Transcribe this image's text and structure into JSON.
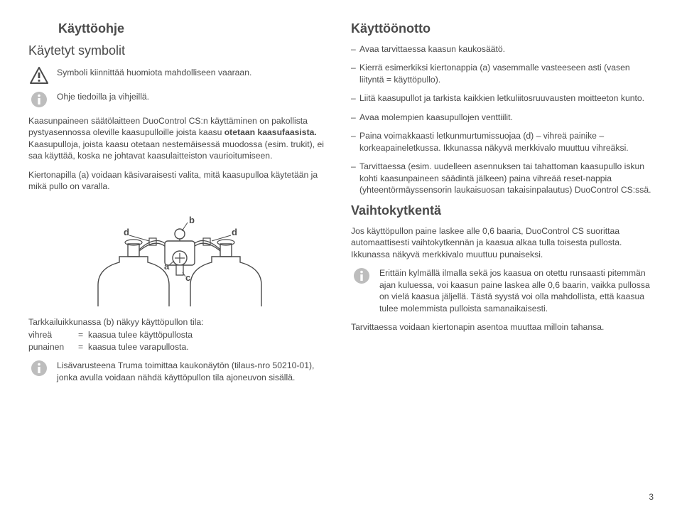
{
  "left": {
    "title_manual": "Käyttöohje",
    "title_symbols": "Käytetyt symbolit",
    "warning_text": "Symboli kiinnittää huomiota mahdolliseen vaaraan.",
    "info_text": "Ohje tiedoilla ja vihjeillä.",
    "para1": "Kaasunpaineen säätölaitteen DuoControl CS:n käyttäminen on pakollista pystyasennossa oleville kaasupulloille joista kaasu otetaan kaasufaasista. Kaasupulloja, joista kaasu otetaan nestemäis­essä muodossa (esim. trukit), ei saa käyttää, koska ne johtavat kaasulaitteiston vaurioitumiseen.",
    "para1_bold": "otetaan kaasufaasista.",
    "para2": "Kiertonapilla (a) voidaan käsivaraisesti valita, mitä kaasupulloa käytetään ja mikä pullo on varalla.",
    "labels": {
      "a": "a",
      "b": "b",
      "c": "c",
      "d": "d"
    },
    "status_caption": "Tarkkailuikkunassa (b) näkyy käyttöpullon tila:",
    "status": [
      {
        "k": "vihreä",
        "v": "kaasua tulee käyttöpullosta"
      },
      {
        "k": "punainen",
        "v": "kaasua tulee varapullosta."
      }
    ],
    "info2": "Lisävarusteena Truma toimittaa kaukonäytön (tilaus-nro 50210-01), jonka avulla voidaan nähdä käyttöpullon tila ajoneuvon sisällä."
  },
  "right": {
    "title_commissioning": "Käyttöönotto",
    "items": [
      "Avaa tarvittaessa kaasun kaukosäätö.",
      "Kierrä esimerkiksi kiertonappia (a) vasemmalle vasteeseen asti (vasen liityntä = käyttöpullo).",
      "Liitä kaasupullot ja tarkista kaikkien letkuliitosruuvausten moitteeton kunto.",
      "Avaa molempien kaasupullojen venttiilit.",
      "Paina voimakkaasti letkunmurtumissuojaa (d) – vihreä painike – korkeapaineletkussa. Ikkunassa näkyvä merkkivalo muuttuu vihreäksi.",
      "Tarvittaessa (esim. uudelleen asennuksen tai tahattoman kaasupullo iskun kohti kaasunpaineen säädintä jälkeen) paina vihreää reset-nappia (yhteentörmäyssensorin laukaisuosan takaisinpalautus) DuoControl CS:ssä."
    ],
    "title_switch": "Vaihtokytkentä",
    "para_switch": "Jos käyttöpullon paine laskee alle 0,6 baaria, DuoControl CS suorittaa automaattisesti vaihtokytkennän ja kaasua alkaa tulla toisesta pullosta. Ikkunassa näkyvä merkkivalo muuttuu punaiseksi.",
    "info_switch": "Erittäin kylmällä ilmalla sekä jos kaasua on otettu runsaasti pitemmän ajan kuluessa, voi kaasun paine laskea alle 0,6 baarin, vaikka pullossa on vielä kaasua jäljellä. Tästä syystä voi olla mahdollista, että kaasua tulee molemmista pulloista samanaikaisesti.",
    "para_last": "Tarvittaessa voidaan kiertonapin asentoa muuttaa milloin tahansa."
  },
  "page": "3",
  "colors": {
    "text": "#4a4a4a",
    "bg": "#ffffff",
    "stroke": "#4a4a4a"
  }
}
